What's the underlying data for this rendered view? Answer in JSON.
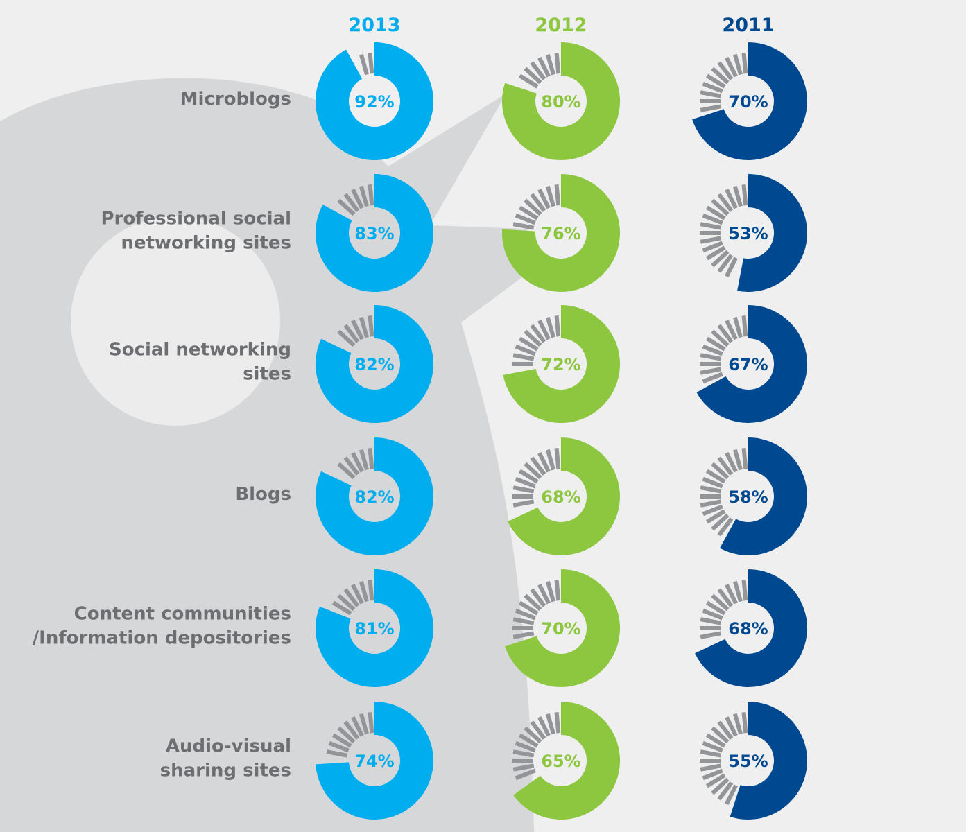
{
  "chart_data": {
    "type": "donut",
    "series": [
      {
        "name": "2013",
        "color": "#00aeef",
        "values": [
          92,
          83,
          82,
          82,
          81,
          74
        ]
      },
      {
        "name": "2012",
        "color": "#8dc63f",
        "values": [
          80,
          76,
          72,
          68,
          70,
          65
        ]
      },
      {
        "name": "2011",
        "color": "#004990",
        "values": [
          70,
          53,
          67,
          58,
          68,
          55
        ]
      }
    ],
    "categories": [
      [
        "Microblogs"
      ],
      [
        "Professional social",
        "networking sites"
      ],
      [
        "Social networking",
        "sites"
      ],
      [
        "Blogs"
      ],
      [
        "Content communities",
        "/Information depositories"
      ],
      [
        "Audio-visual",
        "sharing sites"
      ]
    ],
    "value_suffix": "%",
    "track_color": "#939598",
    "label_color": "#6d6e71"
  }
}
